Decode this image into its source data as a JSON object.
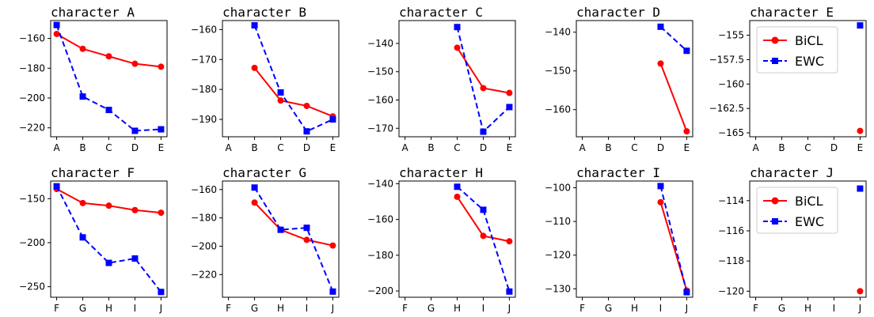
{
  "chart_data": [
    {
      "type": "line",
      "title": "character A",
      "categories": [
        "A",
        "B",
        "C",
        "D",
        "E"
      ],
      "yticks": [
        -160,
        -180,
        -200,
        -220
      ],
      "ylim": [
        -226,
        -148
      ],
      "series": [
        {
          "name": "BiCL",
          "color": "#ff0000",
          "dash": false,
          "marker": "circle",
          "values": [
            -157,
            -167,
            -172,
            -177,
            -179
          ]
        },
        {
          "name": "EWC",
          "color": "#0000ff",
          "dash": true,
          "marker": "square",
          "values": [
            -151,
            -199,
            -208,
            -222,
            -221
          ]
        }
      ],
      "legend": false
    },
    {
      "type": "line",
      "title": "character B",
      "categories": [
        "A",
        "B",
        "C",
        "D",
        "E"
      ],
      "yticks": [
        -160,
        -170,
        -180,
        -190
      ],
      "ylim": [
        -195.8,
        -157
      ],
      "series": [
        {
          "name": "BiCL",
          "color": "#ff0000",
          "dash": false,
          "marker": "circle",
          "values": [
            null,
            -172.8,
            -183.7,
            -185.5,
            -189
          ]
        },
        {
          "name": "EWC",
          "color": "#0000ff",
          "dash": true,
          "marker": "square",
          "values": [
            null,
            -158.6,
            -181,
            -194,
            -190
          ]
        }
      ],
      "legend": false
    },
    {
      "type": "line",
      "title": "character C",
      "categories": [
        "A",
        "B",
        "C",
        "D",
        "E"
      ],
      "yticks": [
        -140,
        -150,
        -160,
        -170
      ],
      "ylim": [
        -173,
        -131.9
      ],
      "series": [
        {
          "name": "BiCL",
          "color": "#ff0000",
          "dash": false,
          "marker": "circle",
          "values": [
            null,
            null,
            -141.5,
            -155.8,
            -157.5
          ]
        },
        {
          "name": "EWC",
          "color": "#0000ff",
          "dash": true,
          "marker": "square",
          "values": [
            null,
            null,
            -134.2,
            -171.2,
            -162.5
          ]
        }
      ],
      "legend": false
    },
    {
      "type": "line",
      "title": "character D",
      "categories": [
        "A",
        "B",
        "C",
        "D",
        "E"
      ],
      "yticks": [
        -140,
        -150,
        -160
      ],
      "ylim": [
        -167,
        -137
      ],
      "series": [
        {
          "name": "BiCL",
          "color": "#ff0000",
          "dash": false,
          "marker": "circle",
          "values": [
            null,
            null,
            null,
            -148.1,
            -165.6
          ]
        },
        {
          "name": "EWC",
          "color": "#0000ff",
          "dash": true,
          "marker": "square",
          "values": [
            null,
            null,
            null,
            -138.6,
            -144.8
          ]
        }
      ],
      "legend": false
    },
    {
      "type": "line",
      "title": "character E",
      "categories": [
        "A",
        "B",
        "C",
        "D",
        "E"
      ],
      "yticks": [
        -155.0,
        -157.5,
        -160.0,
        -162.5,
        -165.0
      ],
      "ylim": [
        -165.4,
        -153.5
      ],
      "series": [
        {
          "name": "BiCL",
          "color": "#ff0000",
          "dash": false,
          "marker": "circle",
          "values": [
            null,
            null,
            null,
            null,
            -164.8
          ]
        },
        {
          "name": "EWC",
          "color": "#0000ff",
          "dash": true,
          "marker": "square",
          "values": [
            null,
            null,
            null,
            null,
            -154
          ]
        }
      ],
      "legend": true,
      "legend_position": "upper-left"
    },
    {
      "type": "line",
      "title": "character F",
      "categories": [
        "F",
        "G",
        "H",
        "I",
        "J"
      ],
      "yticks": [
        -150,
        -200,
        -250
      ],
      "ylim": [
        -262,
        -130
      ],
      "series": [
        {
          "name": "BiCL",
          "color": "#ff0000",
          "dash": false,
          "marker": "circle",
          "values": [
            -139,
            -155,
            -158,
            -163,
            -166
          ]
        },
        {
          "name": "EWC",
          "color": "#0000ff",
          "dash": true,
          "marker": "square",
          "values": [
            -136,
            -194,
            -223,
            -218,
            -256
          ]
        }
      ],
      "legend": false
    },
    {
      "type": "line",
      "title": "character G",
      "categories": [
        "F",
        "G",
        "H",
        "I",
        "J"
      ],
      "yticks": [
        -160,
        -180,
        -200,
        -220
      ],
      "ylim": [
        -236,
        -154
      ],
      "series": [
        {
          "name": "BiCL",
          "color": "#ff0000",
          "dash": false,
          "marker": "circle",
          "values": [
            null,
            -169.2,
            -188.4,
            -195.5,
            -199.5
          ]
        },
        {
          "name": "EWC",
          "color": "#0000ff",
          "dash": true,
          "marker": "square",
          "values": [
            null,
            -158.6,
            -188.4,
            -187,
            -232
          ]
        }
      ],
      "legend": false
    },
    {
      "type": "line",
      "title": "character H",
      "categories": [
        "F",
        "G",
        "H",
        "I",
        "J"
      ],
      "yticks": [
        -140,
        -160,
        -180,
        -200
      ],
      "ylim": [
        -203.5,
        -138.5
      ],
      "series": [
        {
          "name": "BiCL",
          "color": "#ff0000",
          "dash": false,
          "marker": "circle",
          "values": [
            null,
            null,
            -147.3,
            -169.2,
            -172.2
          ]
        },
        {
          "name": "EWC",
          "color": "#0000ff",
          "dash": true,
          "marker": "square",
          "values": [
            null,
            null,
            -141.7,
            -154.6,
            -200.3
          ]
        }
      ],
      "legend": false
    },
    {
      "type": "line",
      "title": "character I",
      "categories": [
        "F",
        "G",
        "H",
        "I",
        "J"
      ],
      "yticks": [
        -100,
        -110,
        -120,
        -130
      ],
      "ylim": [
        -132.5,
        -98
      ],
      "series": [
        {
          "name": "BiCL",
          "color": "#ff0000",
          "dash": false,
          "marker": "circle",
          "values": [
            null,
            null,
            null,
            -104.3,
            -130.5
          ]
        },
        {
          "name": "EWC",
          "color": "#0000ff",
          "dash": true,
          "marker": "square",
          "values": [
            null,
            null,
            null,
            -99.5,
            -131
          ]
        }
      ],
      "legend": false
    },
    {
      "type": "line",
      "title": "character J",
      "categories": [
        "F",
        "G",
        "H",
        "I",
        "J"
      ],
      "yticks": [
        -114,
        -116,
        -118,
        -120
      ],
      "ylim": [
        -120.4,
        -112.7
      ],
      "series": [
        {
          "name": "BiCL",
          "color": "#ff0000",
          "dash": false,
          "marker": "circle",
          "values": [
            null,
            null,
            null,
            null,
            -120
          ]
        },
        {
          "name": "EWC",
          "color": "#0000ff",
          "dash": true,
          "marker": "square",
          "values": [
            null,
            null,
            null,
            null,
            -113.2
          ]
        }
      ],
      "legend": true,
      "legend_position": "upper-left"
    }
  ]
}
